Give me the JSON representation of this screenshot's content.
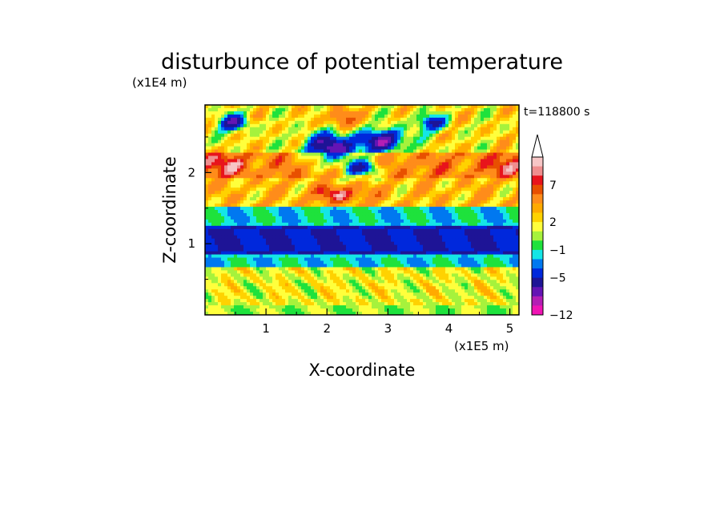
{
  "chart_data": {
    "type": "heatmap",
    "title": "disturbunce of potential temperature",
    "xlabel": "X-coordinate",
    "ylabel": "Z-coordinate",
    "x_unit": "(x1E5 m)",
    "y_unit": "(x1E4 m)",
    "time_label": "t=118800 s",
    "xlim": [
      0,
      5.15
    ],
    "ylim": [
      0,
      2.95
    ],
    "x_ticks": [
      "1",
      "2",
      "3",
      "4",
      "5"
    ],
    "x_tick_values": [
      1,
      2,
      3,
      4,
      5
    ],
    "y_ticks": [
      "1",
      "2"
    ],
    "y_tick_values": [
      1,
      2
    ],
    "colorbar": {
      "labels": [
        "7",
        "2",
        "−1",
        "−5",
        "−12"
      ],
      "label_values": [
        7,
        2,
        -1,
        -5,
        -12
      ],
      "levels_top_to_bottom": [
        9,
        8,
        7,
        6,
        4,
        3,
        2,
        1,
        0,
        -1,
        -2,
        -3,
        -5,
        -7,
        -9,
        -11,
        -12
      ],
      "colors_top_to_bottom": [
        "#f7c6c6",
        "#ef8e8e",
        "#e8141c",
        "#e85000",
        "#ff8c1a",
        "#ffaa00",
        "#ffd200",
        "#ffff3c",
        "#a6f23c",
        "#1ee23c",
        "#14e6e6",
        "#0078f0",
        "#0028dc",
        "#1e1496",
        "#6414b4",
        "#b41eb4",
        "#f014b4"
      ],
      "extend_top": true
    },
    "field_layers": [
      {
        "z_range": [
          0.0,
          0.15
        ],
        "dominant_value": 0.5
      },
      {
        "z_range": [
          0.15,
          0.65
        ],
        "dominant_value": 1.5
      },
      {
        "z_range": [
          0.65,
          0.85
        ],
        "dominant_value": -1.5
      },
      {
        "z_range": [
          0.85,
          1.25
        ],
        "dominant_value": -5
      },
      {
        "z_range": [
          1.25,
          1.5
        ],
        "dominant_value": -1.5
      },
      {
        "z_range": [
          1.5,
          1.9
        ],
        "dominant_value": 3
      },
      {
        "z_range": [
          1.9,
          2.3
        ],
        "dominant_value": 5
      },
      {
        "z_range": [
          2.3,
          2.95
        ],
        "dominant_value": 2
      }
    ]
  }
}
